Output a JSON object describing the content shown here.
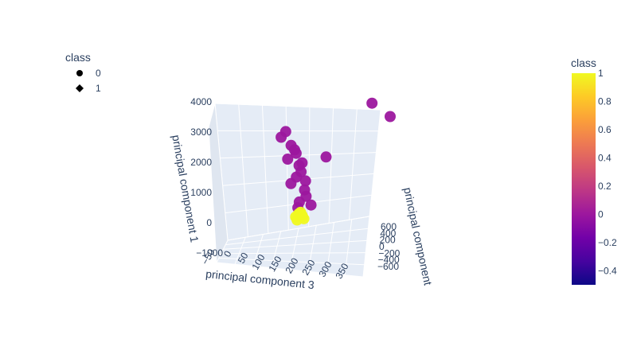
{
  "chart_data": {
    "type": "scatter",
    "projection": "3d",
    "axes": {
      "x": {
        "label": "principal component 3",
        "ticks": [
          "−50",
          "0",
          "50",
          "100",
          "150",
          "200",
          "250",
          "300",
          "350"
        ]
      },
      "y": {
        "label": "principal component",
        "ticks": [
          "600",
          "400",
          "200",
          "0",
          "−200",
          "−400",
          "−600"
        ]
      },
      "z": {
        "label": "principal component 1",
        "ticks": [
          "−1000",
          "0",
          "1000",
          "2000",
          "3000",
          "4000"
        ],
        "range": [
          -1000,
          4000
        ]
      }
    },
    "legend": {
      "title": "class",
      "position": "top-left",
      "items": [
        {
          "label": "0",
          "symbol": "circle"
        },
        {
          "label": "1",
          "symbol": "diamond"
        }
      ]
    },
    "colorbar": {
      "title": "class",
      "range": [
        -0.5,
        1
      ],
      "ticks": [
        "1",
        "0.8",
        "0.6",
        "0.4",
        "0.2",
        "0",
        "−0.2",
        "−0.4"
      ],
      "colors": [
        "#0d0887",
        "#46039f",
        "#7201a8",
        "#9c179e",
        "#bd3786",
        "#d8576b",
        "#ed7953",
        "#fb9f3a",
        "#fdca26",
        "#f0f921"
      ]
    },
    "series": [
      {
        "class": 0,
        "color": "#9c179e",
        "points": [
          [
            300,
            500,
            3700
          ],
          [
            350,
            600,
            3250
          ],
          [
            40,
            0,
            2600
          ],
          [
            60,
            -10,
            2800
          ],
          [
            200,
            100,
            2000
          ],
          [
            80,
            0,
            2350
          ],
          [
            90,
            20,
            2200
          ],
          [
            100,
            0,
            2100
          ],
          [
            70,
            -20,
            1900
          ],
          [
            110,
            10,
            1700
          ],
          [
            120,
            0,
            1500
          ],
          [
            95,
            30,
            1300
          ],
          [
            85,
            -30,
            1100
          ],
          [
            130,
            20,
            900
          ],
          [
            140,
            0,
            700
          ],
          [
            115,
            -10,
            500
          ],
          [
            150,
            50,
            400
          ],
          [
            105,
            10,
            300
          ],
          [
            125,
            -5,
            1800
          ],
          [
            135,
            15,
            1200
          ]
        ]
      },
      {
        "class": 1,
        "color": "#f0f921",
        "points": [
          [
            110,
            0,
            100
          ],
          [
            120,
            20,
            50
          ],
          [
            100,
            -10,
            0
          ],
          [
            130,
            5,
            -50
          ],
          [
            115,
            15,
            150
          ],
          [
            105,
            -5,
            -100
          ],
          [
            125,
            0,
            20
          ],
          [
            118,
            10,
            80
          ]
        ]
      }
    ]
  }
}
